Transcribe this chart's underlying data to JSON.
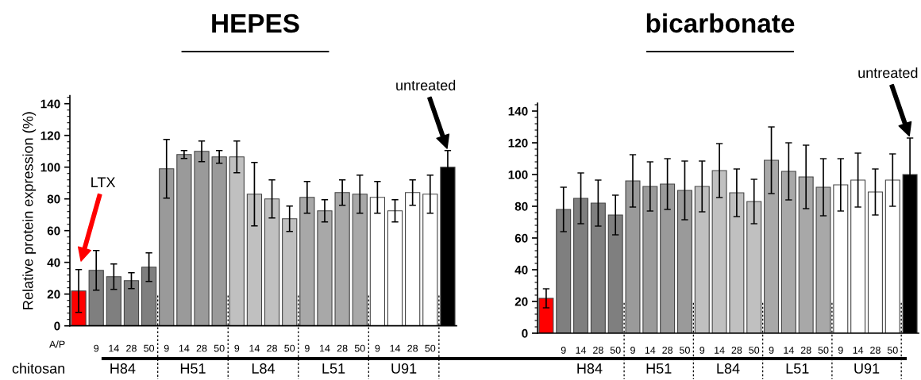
{
  "chart_data": [
    {
      "type": "bar",
      "title": "HEPES",
      "ylabel": "Relative protein expression (%)",
      "categories": [
        null,
        "9",
        "14",
        "28",
        "50",
        "9",
        "14",
        "28",
        "50",
        "9",
        "14",
        "28",
        "50",
        "9",
        "14",
        "28",
        "50",
        "9",
        "14",
        "28",
        "50",
        null
      ],
      "values": [
        22,
        35,
        31,
        28.5,
        37,
        99,
        108,
        110,
        106.5,
        106.5,
        83,
        80,
        67.5,
        81,
        72.5,
        84,
        83,
        81,
        72.5,
        84,
        83,
        100
      ],
      "errors": [
        13.5,
        12.5,
        8,
        5,
        9,
        18.5,
        2.5,
        6.5,
        4,
        10,
        20,
        12,
        8,
        10,
        7,
        8,
        12,
        10,
        7,
        8,
        12,
        10.5
      ],
      "colors": [
        "#ff0000",
        "#7f7f7f",
        "#7f7f7f",
        "#7f7f7f",
        "#7f7f7f",
        "#9a9a9a",
        "#9a9a9a",
        "#9a9a9a",
        "#9a9a9a",
        "#c0c0c0",
        "#c0c0c0",
        "#c0c0c0",
        "#c0c0c0",
        "#a8a8a8",
        "#a8a8a8",
        "#a8a8a8",
        "#a8a8a8",
        "#ffffff",
        "#ffffff",
        "#ffffff",
        "#ffffff",
        "#000000"
      ],
      "ylim": [
        0,
        145
      ],
      "yticks": [
        0,
        20,
        40,
        60,
        80,
        100,
        120,
        140
      ],
      "annotations": [
        "LTX",
        "untreated",
        "A/P",
        "chitosan",
        "H84",
        "H51",
        "L84",
        "L51",
        "U91"
      ]
    },
    {
      "type": "bar",
      "title": "bicarbonate",
      "categories": [
        null,
        "9",
        "14",
        "28",
        "50",
        "9",
        "14",
        "28",
        "50",
        "9",
        "14",
        "28",
        "50",
        "9",
        "14",
        "28",
        "50",
        "9",
        "14",
        "28",
        "50",
        null
      ],
      "values": [
        22,
        78,
        85,
        82,
        74.5,
        96,
        92.5,
        94,
        90,
        92.5,
        102.5,
        88.5,
        83,
        109,
        102,
        98.5,
        92,
        93.5,
        96.5,
        89,
        96.5,
        100
      ],
      "errors": [
        6,
        14,
        16,
        14.5,
        12.5,
        16.5,
        15.5,
        16,
        18.5,
        16,
        17,
        15,
        14,
        21,
        18,
        20,
        18,
        16.5,
        17,
        14.5,
        16.5,
        23
      ],
      "colors": [
        "#ff0000",
        "#7f7f7f",
        "#7f7f7f",
        "#7f7f7f",
        "#7f7f7f",
        "#9a9a9a",
        "#9a9a9a",
        "#9a9a9a",
        "#9a9a9a",
        "#c0c0c0",
        "#c0c0c0",
        "#c0c0c0",
        "#c0c0c0",
        "#a8a8a8",
        "#a8a8a8",
        "#a8a8a8",
        "#a8a8a8",
        "#ffffff",
        "#ffffff",
        "#ffffff",
        "#ffffff",
        "#000000"
      ],
      "ylim": [
        0,
        145
      ],
      "yticks": [
        0,
        20,
        40,
        60,
        80,
        100,
        120,
        140
      ],
      "annotations": [
        "untreated",
        "H84",
        "H51",
        "L84",
        "L51",
        "U91"
      ]
    }
  ]
}
